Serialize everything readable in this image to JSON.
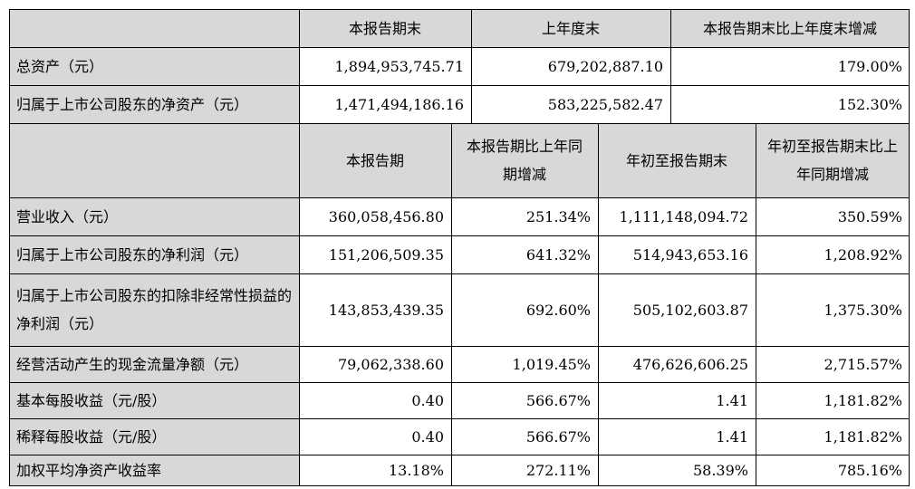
{
  "top_header": {
    "label": "",
    "col1": "本报告期末",
    "col2": "上年度末",
    "col3": "本报告期末比上年度末增减"
  },
  "top_rows": [
    {
      "label": "总资产（元）",
      "c1": "1,894,953,745.71",
      "c2": "679,202,887.10",
      "c3": "179.00%"
    },
    {
      "label": "归属于上市公司股东的净资产（元）",
      "c1": "1,471,494,186.16",
      "c2": "583,225,582.47",
      "c3": "152.30%"
    }
  ],
  "mid_header": {
    "label": "",
    "col1": "本报告期",
    "col2": "本报告期比上年同期增减",
    "col3": "年初至报告期末",
    "col4": "年初至报告期末比上年同期增减"
  },
  "rows": [
    {
      "label": "营业收入（元）",
      "c1": "360,058,456.80",
      "c2": "251.34%",
      "c3": "1,111,148,094.72",
      "c4": "350.59%"
    },
    {
      "label": "归属于上市公司股东的净利润（元）",
      "c1": "151,206,509.35",
      "c2": "641.32%",
      "c3": "514,943,653.16",
      "c4": "1,208.92%"
    },
    {
      "label": "归属于上市公司股东的扣除非经常性损益的净利润（元）",
      "c1": "143,853,439.35",
      "c2": "692.60%",
      "c3": "505,102,603.87",
      "c4": "1,375.30%"
    },
    {
      "label": "经营活动产生的现金流量净额（元）",
      "c1": "79,062,338.60",
      "c2": "1,019.45%",
      "c3": "476,626,606.25",
      "c4": "2,715.57%"
    },
    {
      "label": "基本每股收益（元/股）",
      "c1": "0.40",
      "c2": "566.67%",
      "c3": "1.41",
      "c4": "1,181.82%"
    },
    {
      "label": "稀释每股收益（元/股）",
      "c1": "0.40",
      "c2": "566.67%",
      "c3": "1.41",
      "c4": "1,181.82%"
    },
    {
      "label": "加权平均净资产收益率",
      "c1": "13.18%",
      "c2": "272.11%",
      "c3": "58.39%",
      "c4": "785.16%"
    }
  ]
}
